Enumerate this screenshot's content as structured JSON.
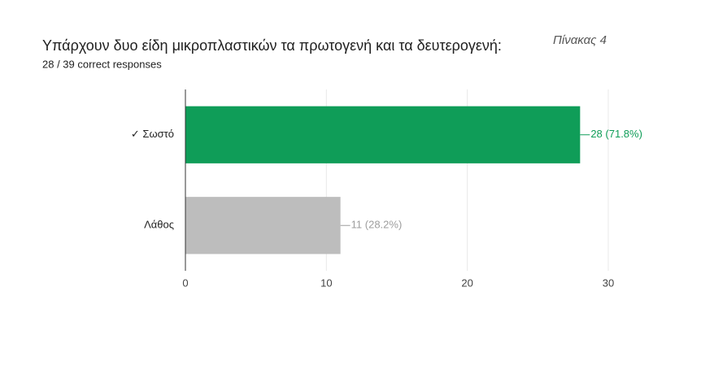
{
  "chart_data": {
    "type": "bar",
    "orientation": "horizontal",
    "title": "Υπάρχουν δυο είδη μικροπλαστικών τα πρωτογενή και τα δευτερογενή:",
    "subtitle": "28 / 39 correct responses",
    "annotation": "Πίνακας 4",
    "categories": [
      "✓ Σωστό",
      "Λάθος"
    ],
    "values": [
      28,
      11
    ],
    "value_labels": [
      "28 (71.8%)",
      "11 (28.2%)"
    ],
    "colors": [
      "#0f9d58",
      "#bdbdbd"
    ],
    "value_label_colors": [
      "#0f9d58",
      "#9e9e9e"
    ],
    "xlim": [
      0,
      30
    ],
    "xticks": [
      0,
      10,
      20,
      30
    ],
    "grid": true
  }
}
